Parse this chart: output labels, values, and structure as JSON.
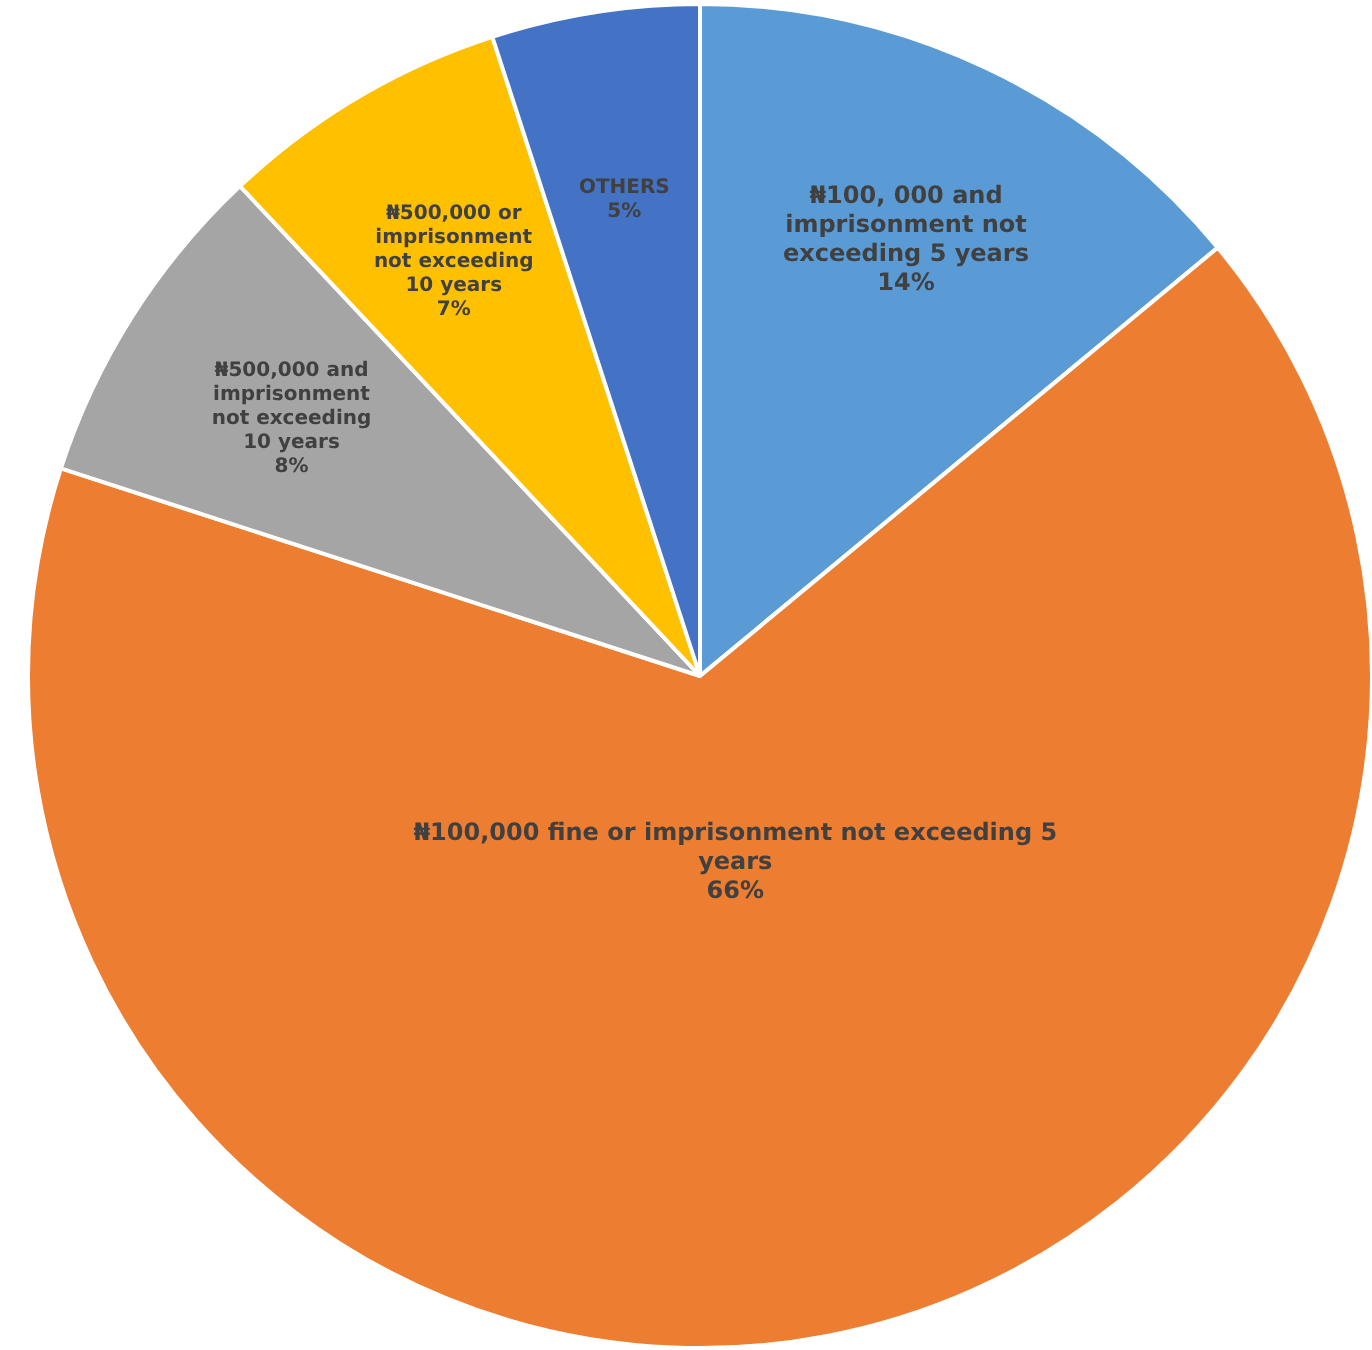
{
  "chart_data": {
    "type": "pie",
    "categories": [
      "₦100, 000 and imprisonment not exceeding 5 years",
      "₦100,000 fine or imprisonment not exceeding 5 years",
      "₦500,000 and imprisonment not exceeding 10 years",
      "₦500,000 or imprisonment not exceeding 10 years",
      "OTHERS"
    ],
    "values": [
      14,
      66,
      8,
      7,
      5
    ],
    "colors": [
      "#5b9bd5",
      "#ed7d31",
      "#a5a5a5",
      "#ffc000",
      "#4472c4"
    ],
    "value_labels": [
      "14%",
      "66%",
      "8%",
      "7%",
      "5%"
    ]
  }
}
